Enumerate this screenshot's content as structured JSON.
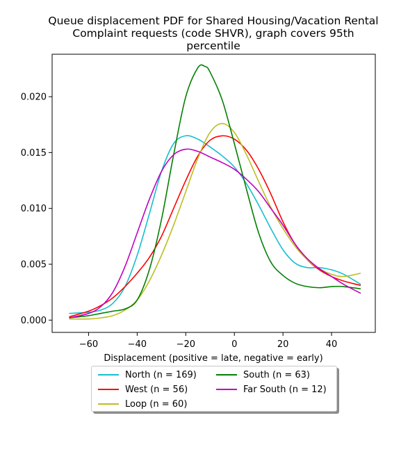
{
  "chart_data": {
    "type": "line",
    "title_lines": [
      "Queue displacement PDF for Shared Housing/Vacation Rental",
      "Complaint  requests (code SHVR), graph covers 95th",
      "percentile"
    ],
    "xlabel": "Displacement (positive = late, negative = early)",
    "ylabel": "",
    "xlim": [
      -75,
      58
    ],
    "ylim": [
      -0.0011,
      0.0238
    ],
    "xticks": [
      -60,
      -40,
      -20,
      0,
      20,
      40
    ],
    "xtick_labels": [
      "−60",
      "−40",
      "−20",
      "0",
      "20",
      "40"
    ],
    "yticks": [
      0.0,
      0.005,
      0.01,
      0.015,
      0.02
    ],
    "ytick_labels": [
      "0.000",
      "0.005",
      "0.010",
      "0.015",
      "0.020"
    ],
    "grid": false,
    "legend_position": "below plot, center",
    "series": [
      {
        "name": "North (n = 169)",
        "color": "#17becf",
        "x": [
          -68,
          -60,
          -55,
          -50,
          -45,
          -40,
          -35,
          -30,
          -25,
          -20,
          -15,
          -10,
          -5,
          0,
          5,
          10,
          15,
          20,
          25,
          30,
          35,
          40,
          45,
          52
        ],
        "y": [
          0.0006,
          0.0007,
          0.0009,
          0.0015,
          0.003,
          0.0058,
          0.0095,
          0.0133,
          0.0158,
          0.0165,
          0.0162,
          0.0155,
          0.0147,
          0.0137,
          0.0122,
          0.0103,
          0.0082,
          0.0063,
          0.0051,
          0.0047,
          0.0047,
          0.0045,
          0.0041,
          0.0032
        ]
      },
      {
        "name": "West (n = 56)",
        "color": "#ff0000",
        "x": [
          -68,
          -60,
          -55,
          -50,
          -45,
          -40,
          -35,
          -30,
          -25,
          -20,
          -15,
          -10,
          -5,
          0,
          5,
          10,
          15,
          20,
          25,
          30,
          35,
          40,
          45,
          52
        ],
        "y": [
          0.0003,
          0.0008,
          0.0013,
          0.002,
          0.003,
          0.0042,
          0.0056,
          0.0075,
          0.01,
          0.0125,
          0.0147,
          0.0161,
          0.0165,
          0.0162,
          0.0152,
          0.0135,
          0.0113,
          0.0088,
          0.0068,
          0.0054,
          0.0045,
          0.0039,
          0.0035,
          0.0031
        ]
      },
      {
        "name": "Loop (n = 60)",
        "color": "#bcbd22",
        "x": [
          -68,
          -60,
          -55,
          -50,
          -45,
          -40,
          -35,
          -30,
          -25,
          -20,
          -15,
          -10,
          -5,
          0,
          5,
          10,
          15,
          20,
          25,
          30,
          35,
          40,
          45,
          52
        ],
        "y": [
          0.0001,
          0.0001,
          0.0002,
          0.0004,
          0.0009,
          0.0018,
          0.0035,
          0.0058,
          0.0085,
          0.0115,
          0.0145,
          0.0168,
          0.0176,
          0.0168,
          0.0148,
          0.0124,
          0.0101,
          0.0082,
          0.0066,
          0.0054,
          0.0046,
          0.0041,
          0.0039,
          0.0042
        ]
      },
      {
        "name": "South (n = 63)",
        "color": "#008000",
        "x": [
          -68,
          -60,
          -55,
          -50,
          -45,
          -40,
          -35,
          -30,
          -25,
          -20,
          -15,
          -12,
          -10,
          -5,
          0,
          5,
          10,
          15,
          20,
          25,
          30,
          35,
          40,
          45,
          52
        ],
        "y": [
          0.0002,
          0.0004,
          0.0006,
          0.0008,
          0.001,
          0.0018,
          0.0045,
          0.009,
          0.0148,
          0.02,
          0.0226,
          0.0227,
          0.0222,
          0.0197,
          0.0158,
          0.0117,
          0.0078,
          0.0052,
          0.004,
          0.0033,
          0.003,
          0.0029,
          0.003,
          0.003,
          0.0028
        ]
      },
      {
        "name": "Far South (n = 12)",
        "color": "#bf00bf",
        "x": [
          -68,
          -60,
          -55,
          -50,
          -45,
          -40,
          -35,
          -30,
          -25,
          -20,
          -15,
          -10,
          -5,
          0,
          5,
          10,
          15,
          20,
          25,
          30,
          35,
          40,
          45,
          52
        ],
        "y": [
          0.0002,
          0.0006,
          0.0012,
          0.0025,
          0.0048,
          0.0078,
          0.0108,
          0.0133,
          0.0148,
          0.0153,
          0.0151,
          0.0146,
          0.0141,
          0.0135,
          0.0126,
          0.0115,
          0.01,
          0.0085,
          0.0068,
          0.0055,
          0.0046,
          0.0039,
          0.0032,
          0.0024
        ]
      }
    ]
  }
}
